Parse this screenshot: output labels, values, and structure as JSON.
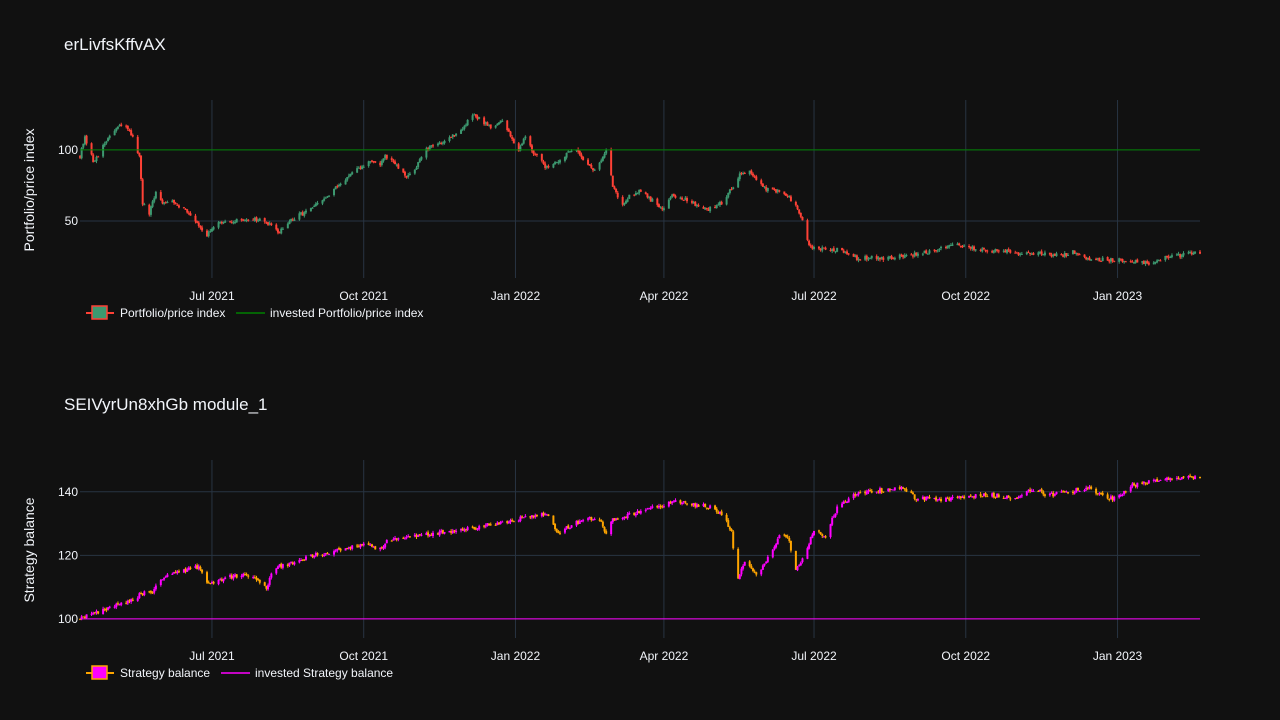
{
  "chart_data": [
    {
      "type": "candlestick",
      "title": "erLivfsKffvAX",
      "ylabel": "Portfolio/price index",
      "xlabel": "",
      "x_range": [
        "2021-04-12",
        "2023-02-20"
      ],
      "ylim": [
        10,
        135
      ],
      "x_ticks": [
        {
          "date": "2021-07-01",
          "label": "Jul 2021"
        },
        {
          "date": "2021-10-01",
          "label": "Oct 2021"
        },
        {
          "date": "2022-01-01",
          "label": "Jan 2022"
        },
        {
          "date": "2022-04-01",
          "label": "Apr 2022"
        },
        {
          "date": "2022-07-01",
          "label": "Jul 2022"
        },
        {
          "date": "2022-10-01",
          "label": "Oct 2022"
        },
        {
          "date": "2023-01-01",
          "label": "Jan 2023"
        }
      ],
      "y_ticks": [
        50,
        100
      ],
      "grid": true,
      "legend_position": "bottom-left",
      "colors": {
        "increasing": "#3d9970",
        "decreasing": "#ff4136",
        "invested": "#008000"
      },
      "series": [
        {
          "name": "Portfolio/price index",
          "kind": "candlestick"
        },
        {
          "name": "invested Portfolio/price index",
          "kind": "line",
          "value": 100
        }
      ],
      "anchors": [
        [
          "2021-04-12",
          96
        ],
        [
          "2021-04-15",
          108
        ],
        [
          "2021-04-20",
          92
        ],
        [
          "2021-04-25",
          100
        ],
        [
          "2021-05-01",
          112
        ],
        [
          "2021-05-08",
          118
        ],
        [
          "2021-05-14",
          110
        ],
        [
          "2021-05-18",
          95
        ],
        [
          "2021-05-20",
          62
        ],
        [
          "2021-05-24",
          55
        ],
        [
          "2021-05-28",
          70
        ],
        [
          "2021-06-02",
          62
        ],
        [
          "2021-06-07",
          65
        ],
        [
          "2021-06-12",
          60
        ],
        [
          "2021-06-18",
          55
        ],
        [
          "2021-06-24",
          46
        ],
        [
          "2021-06-28",
          40
        ],
        [
          "2021-07-05",
          48
        ],
        [
          "2021-07-15",
          50
        ],
        [
          "2021-07-25",
          52
        ],
        [
          "2021-08-03",
          49
        ],
        [
          "2021-08-10",
          42
        ],
        [
          "2021-08-20",
          52
        ],
        [
          "2021-09-01",
          60
        ],
        [
          "2021-09-10",
          68
        ],
        [
          "2021-09-20",
          80
        ],
        [
          "2021-09-30",
          88
        ],
        [
          "2021-10-06",
          93
        ],
        [
          "2021-10-10",
          88
        ],
        [
          "2021-10-14",
          95
        ],
        [
          "2021-10-20",
          90
        ],
        [
          "2021-10-27",
          80
        ],
        [
          "2021-11-01",
          87
        ],
        [
          "2021-11-08",
          100
        ],
        [
          "2021-11-16",
          105
        ],
        [
          "2021-11-24",
          110
        ],
        [
          "2021-12-01",
          116
        ],
        [
          "2021-12-06",
          125
        ],
        [
          "2021-12-12",
          120
        ],
        [
          "2021-12-18",
          116
        ],
        [
          "2021-12-24",
          120
        ],
        [
          "2021-12-30",
          108
        ],
        [
          "2022-01-03",
          100
        ],
        [
          "2022-01-07",
          110
        ],
        [
          "2022-01-12",
          98
        ],
        [
          "2022-01-19",
          88
        ],
        [
          "2022-01-26",
          92
        ],
        [
          "2022-01-31",
          95
        ],
        [
          "2022-02-06",
          103
        ],
        [
          "2022-02-12",
          92
        ],
        [
          "2022-02-18",
          85
        ],
        [
          "2022-02-25",
          99
        ],
        [
          "2022-03-01",
          75
        ],
        [
          "2022-03-06",
          62
        ],
        [
          "2022-03-12",
          68
        ],
        [
          "2022-03-18",
          72
        ],
        [
          "2022-03-24",
          65
        ],
        [
          "2022-03-31",
          59
        ],
        [
          "2022-04-06",
          68
        ],
        [
          "2022-04-12",
          66
        ],
        [
          "2022-04-20",
          62
        ],
        [
          "2022-04-28",
          58
        ],
        [
          "2022-05-06",
          63
        ],
        [
          "2022-05-12",
          73
        ],
        [
          "2022-05-17",
          83
        ],
        [
          "2022-05-22",
          86
        ],
        [
          "2022-05-26",
          80
        ],
        [
          "2022-06-01",
          73
        ],
        [
          "2022-06-08",
          71
        ],
        [
          "2022-06-15",
          68
        ],
        [
          "2022-06-20",
          60
        ],
        [
          "2022-06-24",
          50
        ],
        [
          "2022-06-28",
          32
        ],
        [
          "2022-07-06",
          30
        ],
        [
          "2022-07-15",
          30
        ],
        [
          "2022-07-22",
          28
        ],
        [
          "2022-07-28",
          23
        ],
        [
          "2022-08-04",
          25
        ],
        [
          "2022-08-15",
          24
        ],
        [
          "2022-08-28",
          26
        ],
        [
          "2022-09-08",
          28
        ],
        [
          "2022-09-18",
          32
        ],
        [
          "2022-09-28",
          33
        ],
        [
          "2022-10-08",
          30
        ],
        [
          "2022-10-18",
          29
        ],
        [
          "2022-10-28",
          28
        ],
        [
          "2022-11-08",
          27
        ],
        [
          "2022-11-18",
          27
        ],
        [
          "2022-11-28",
          26
        ],
        [
          "2022-12-05",
          28
        ],
        [
          "2022-12-12",
          24
        ],
        [
          "2022-12-22",
          23
        ],
        [
          "2023-01-01",
          23
        ],
        [
          "2023-01-10",
          22
        ],
        [
          "2023-01-20",
          20
        ],
        [
          "2023-01-28",
          24
        ],
        [
          "2023-02-05",
          25
        ],
        [
          "2023-02-14",
          28
        ],
        [
          "2023-02-20",
          27
        ]
      ]
    },
    {
      "type": "candlestick",
      "title": "SEIVyrUn8xhGb module_1",
      "ylabel": "Strategy balance",
      "xlabel": "",
      "x_range": [
        "2021-04-12",
        "2023-02-20"
      ],
      "ylim": [
        94,
        150
      ],
      "x_ticks": [
        {
          "date": "2021-07-01",
          "label": "Jul 2021"
        },
        {
          "date": "2021-10-01",
          "label": "Oct 2021"
        },
        {
          "date": "2022-01-01",
          "label": "Jan 2022"
        },
        {
          "date": "2022-04-01",
          "label": "Apr 2022"
        },
        {
          "date": "2022-07-01",
          "label": "Jul 2022"
        },
        {
          "date": "2022-10-01",
          "label": "Oct 2022"
        },
        {
          "date": "2023-01-01",
          "label": "Jan 2023"
        }
      ],
      "y_ticks": [
        100,
        120,
        140
      ],
      "grid": true,
      "legend_position": "bottom-left",
      "colors": {
        "increasing": "#ff00ff",
        "decreasing": "#ffa500",
        "invested": "#ff00ff"
      },
      "series": [
        {
          "name": "Strategy balance",
          "kind": "candlestick"
        },
        {
          "name": "invested Strategy balance",
          "kind": "line",
          "value": 100
        }
      ],
      "anchors": [
        [
          "2021-04-12",
          100
        ],
        [
          "2021-04-20",
          101.5
        ],
        [
          "2021-05-01",
          104
        ],
        [
          "2021-05-10",
          105
        ],
        [
          "2021-05-20",
          108
        ],
        [
          "2021-05-25",
          108
        ],
        [
          "2021-06-01",
          113
        ],
        [
          "2021-06-10",
          115
        ],
        [
          "2021-06-20",
          116
        ],
        [
          "2021-06-24",
          116
        ],
        [
          "2021-06-27",
          111
        ],
        [
          "2021-07-01",
          111
        ],
        [
          "2021-07-10",
          113
        ],
        [
          "2021-07-20",
          114
        ],
        [
          "2021-07-28",
          113
        ],
        [
          "2021-08-03",
          110
        ],
        [
          "2021-08-08",
          116
        ],
        [
          "2021-08-20",
          118
        ],
        [
          "2021-09-01",
          120
        ],
        [
          "2021-09-15",
          121.5
        ],
        [
          "2021-09-28",
          123
        ],
        [
          "2021-10-05",
          123.5
        ],
        [
          "2021-10-10",
          121
        ],
        [
          "2021-10-15",
          124.5
        ],
        [
          "2021-11-01",
          126
        ],
        [
          "2021-11-15",
          127
        ],
        [
          "2021-12-01",
          128
        ],
        [
          "2021-12-15",
          129.5
        ],
        [
          "2022-01-01",
          131
        ],
        [
          "2022-01-10",
          132.5
        ],
        [
          "2022-01-20",
          133
        ],
        [
          "2022-01-26",
          127
        ],
        [
          "2022-02-02",
          129
        ],
        [
          "2022-02-10",
          131
        ],
        [
          "2022-02-20",
          132
        ],
        [
          "2022-02-25",
          127
        ],
        [
          "2022-03-01",
          131
        ],
        [
          "2022-03-15",
          133.5
        ],
        [
          "2022-04-01",
          136
        ],
        [
          "2022-04-10",
          137
        ],
        [
          "2022-04-20",
          136
        ],
        [
          "2022-05-01",
          135
        ],
        [
          "2022-05-08",
          132
        ],
        [
          "2022-05-12",
          127
        ],
        [
          "2022-05-15",
          112
        ],
        [
          "2022-05-20",
          118
        ],
        [
          "2022-05-28",
          114
        ],
        [
          "2022-06-04",
          120
        ],
        [
          "2022-06-12",
          128
        ],
        [
          "2022-06-16",
          124
        ],
        [
          "2022-06-20",
          115
        ],
        [
          "2022-06-24",
          119
        ],
        [
          "2022-07-01",
          128
        ],
        [
          "2022-07-08",
          126
        ],
        [
          "2022-07-15",
          135
        ],
        [
          "2022-07-25",
          139
        ],
        [
          "2022-08-10",
          140.5
        ],
        [
          "2022-08-25",
          141
        ],
        [
          "2022-09-01",
          138
        ],
        [
          "2022-09-15",
          137.5
        ],
        [
          "2022-10-01",
          138.5
        ],
        [
          "2022-10-15",
          139
        ],
        [
          "2022-11-01",
          138
        ],
        [
          "2022-11-10",
          141
        ],
        [
          "2022-11-20",
          139
        ],
        [
          "2022-12-01",
          140
        ],
        [
          "2022-12-15",
          141
        ],
        [
          "2022-12-25",
          138
        ],
        [
          "2023-01-01",
          138
        ],
        [
          "2023-01-10",
          142
        ],
        [
          "2023-01-20",
          143
        ],
        [
          "2023-02-01",
          144
        ],
        [
          "2023-02-10",
          144.5
        ],
        [
          "2023-02-20",
          144.5
        ]
      ]
    }
  ]
}
